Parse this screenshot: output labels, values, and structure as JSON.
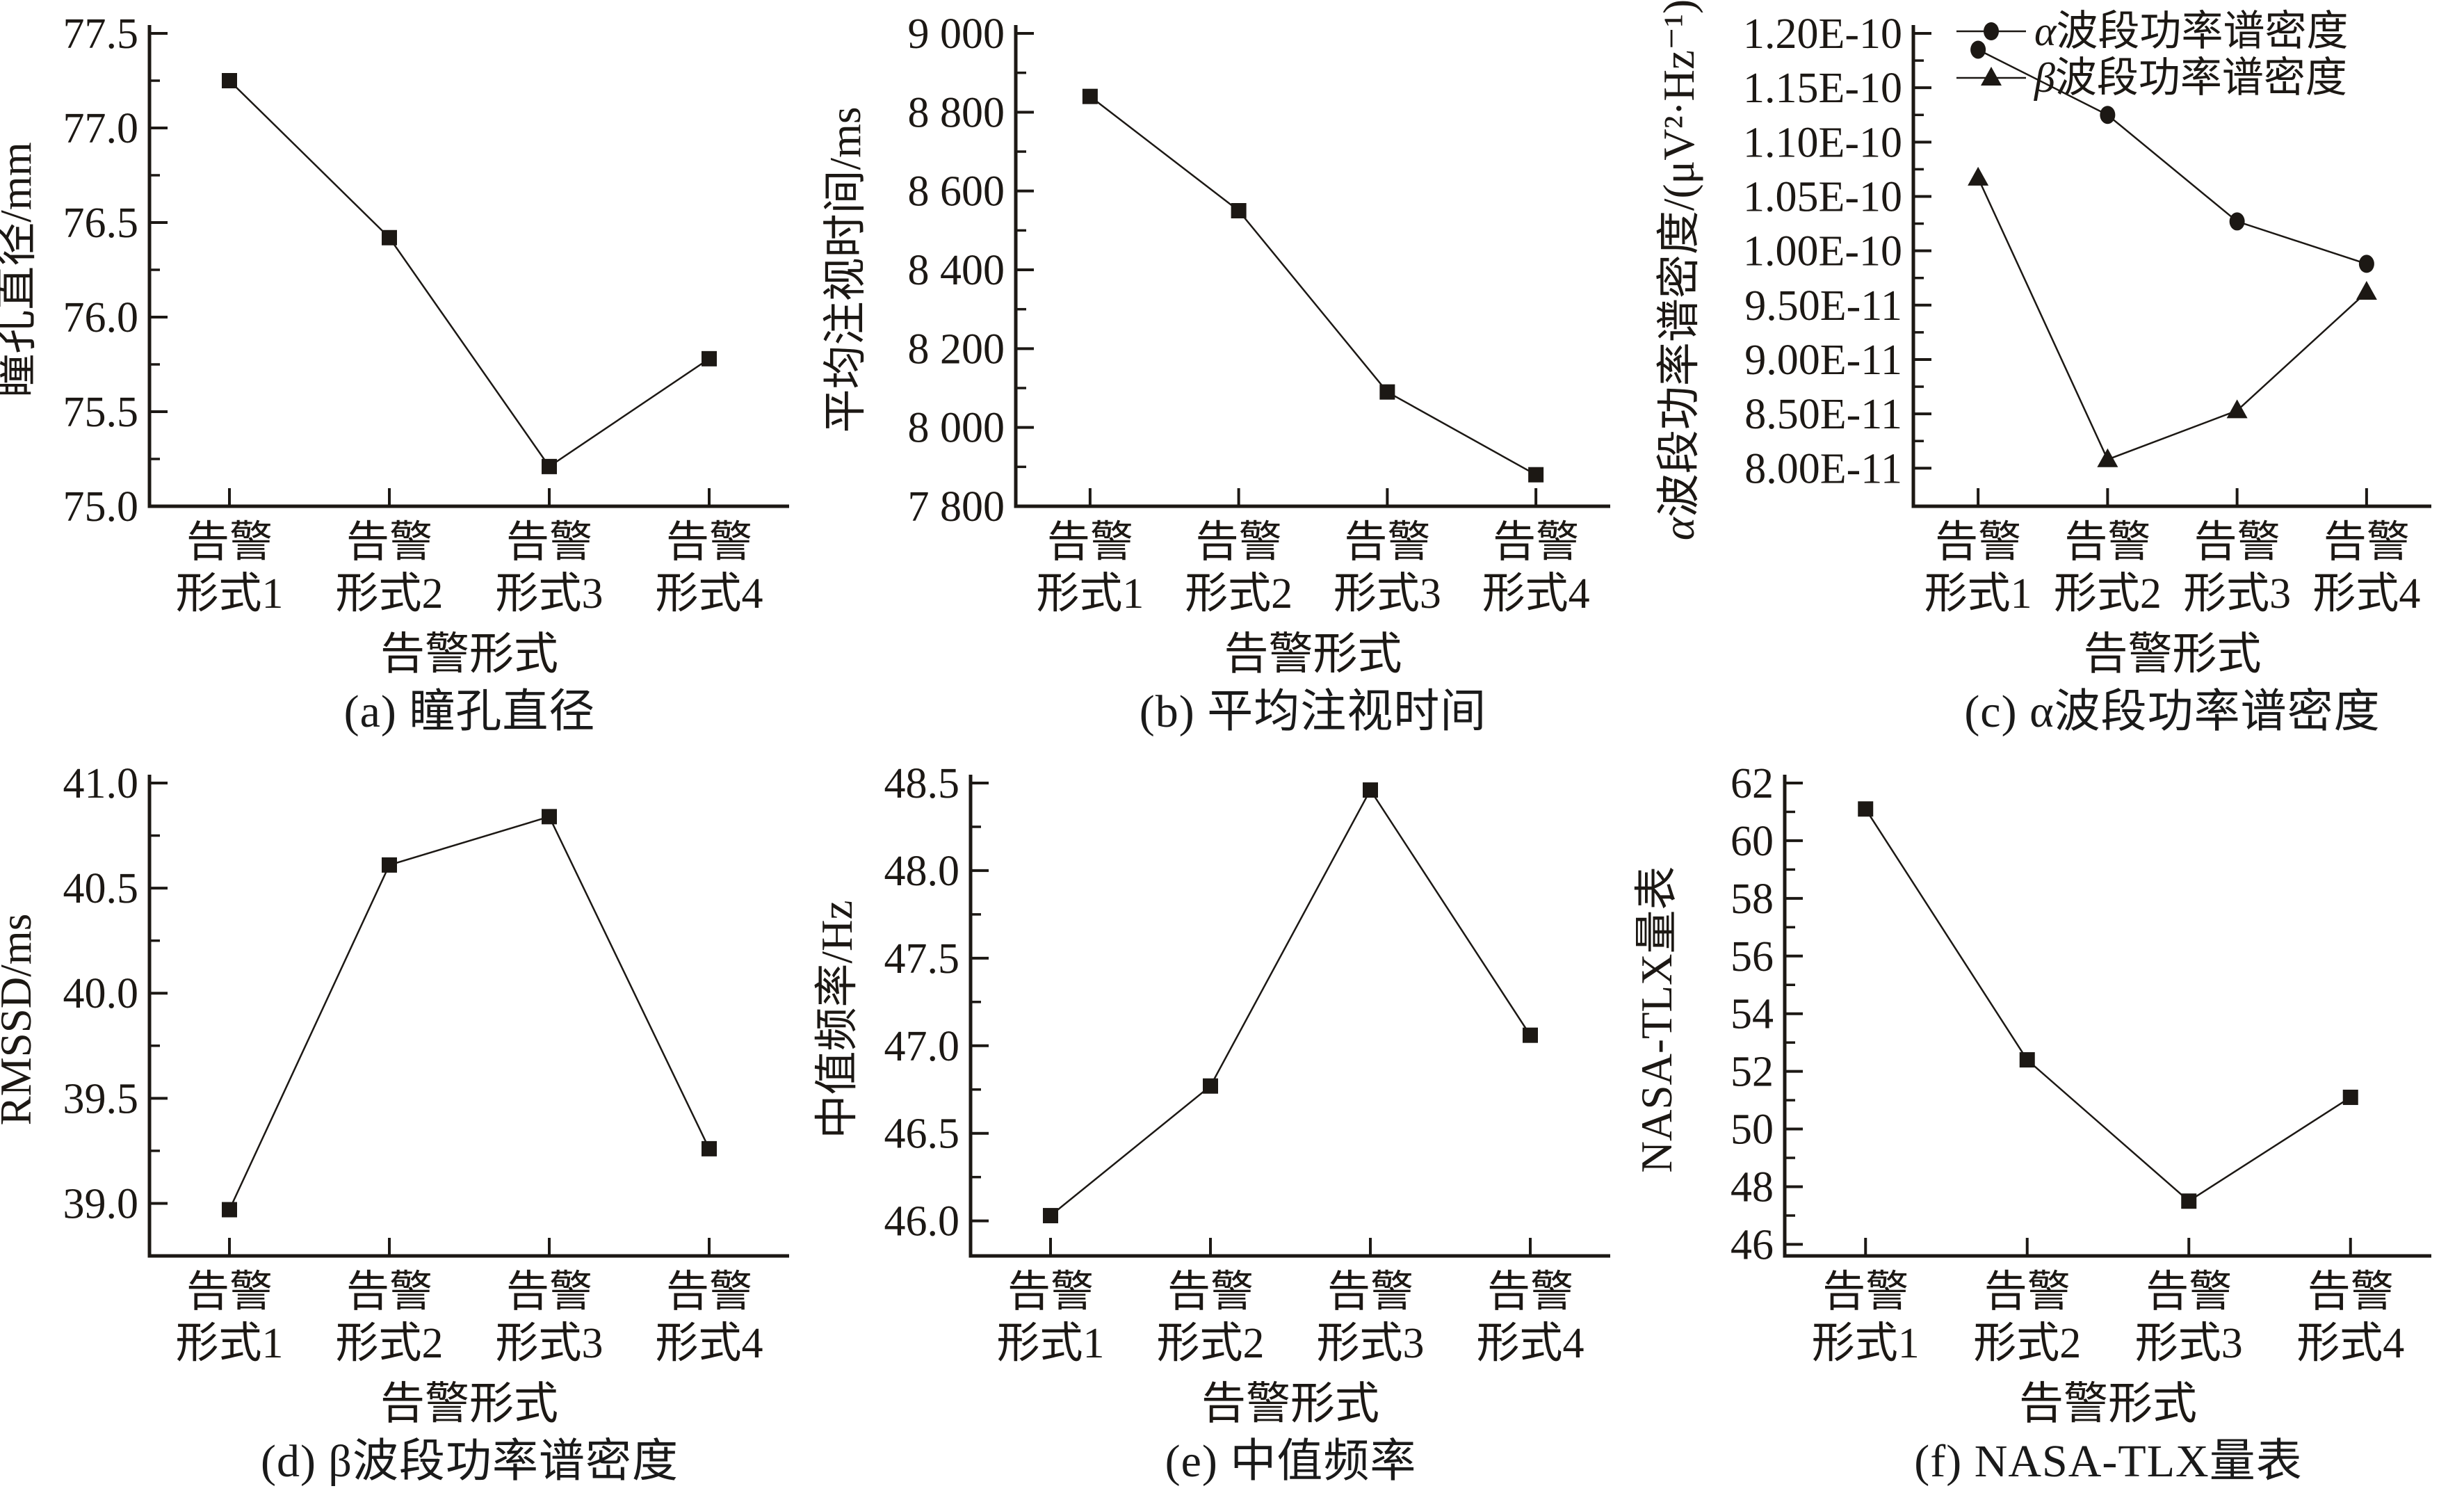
{
  "figure": {
    "background": "#ffffff",
    "ink": "#1c1814",
    "x_axis_title": "告警形式"
  },
  "chart_data": [
    {
      "id": "a",
      "type": "line",
      "caption": "(a) 瞳孔直径",
      "ylabel": "瞳孔直径/mm",
      "xlabel": "告警形式",
      "categories": [
        [
          "告警",
          "形式1"
        ],
        [
          "告警",
          "形式2"
        ],
        [
          "告警",
          "形式3"
        ],
        [
          "告警",
          "形式4"
        ]
      ],
      "ylim": [
        75.0,
        77.5
      ],
      "yticks": [
        {
          "v": 75.0,
          "label": "75.0"
        },
        {
          "v": 75.5,
          "label": "75.5"
        },
        {
          "v": 76.0,
          "label": "76.0"
        },
        {
          "v": 76.5,
          "label": "76.5"
        },
        {
          "v": 77.0,
          "label": "77.0"
        },
        {
          "v": 77.5,
          "label": "77.5"
        }
      ],
      "minor_step": 0.25,
      "grid": false,
      "series": [
        {
          "name": "瞳孔直径",
          "marker": "square",
          "values": [
            77.25,
            76.42,
            75.21,
            75.78
          ]
        }
      ],
      "layout": {
        "left": 215,
        "ylabel_x": 44
      }
    },
    {
      "id": "b",
      "type": "line",
      "caption": "(b) 平均注视时间",
      "ylabel": "平均注视时间/ms",
      "xlabel": "告警形式",
      "categories": [
        [
          "告警",
          "形式1"
        ],
        [
          "告警",
          "形式2"
        ],
        [
          "告警",
          "形式3"
        ],
        [
          "告警",
          "形式4"
        ]
      ],
      "ylim": [
        7800,
        9000
      ],
      "yticks": [
        {
          "v": 7800,
          "label": "7 800"
        },
        {
          "v": 8000,
          "label": "8 000"
        },
        {
          "v": 8200,
          "label": "8 200"
        },
        {
          "v": 8400,
          "label": "8 400"
        },
        {
          "v": 8600,
          "label": "8 600"
        },
        {
          "v": 8800,
          "label": "8 800"
        },
        {
          "v": 9000,
          "label": "9 000"
        }
      ],
      "minor_step": 100,
      "grid": false,
      "series": [
        {
          "name": "平均注视时间",
          "marker": "square",
          "values": [
            8840,
            8550,
            8090,
            7880
          ]
        }
      ],
      "layout": {
        "left": 280,
        "ylabel_x": 56
      }
    },
    {
      "id": "c",
      "type": "line",
      "caption": "(c) α波段功率谱密度",
      "ylabel": "α波段功率谱密度/(μV²·Hz⁻¹)",
      "xlabel": "告警形式",
      "categories": [
        [
          "告警",
          "形式1"
        ],
        [
          "告警",
          "形式2"
        ],
        [
          "告警",
          "形式3"
        ],
        [
          "告警",
          "形式4"
        ]
      ],
      "ylim": [
        7.65e-11,
        1.2e-10
      ],
      "yticks": [
        {
          "v": 8e-11,
          "label": "8.00E-11"
        },
        {
          "v": 8.5e-11,
          "label": "8.50E-11"
        },
        {
          "v": 9e-11,
          "label": "9.00E-11"
        },
        {
          "v": 9.5e-11,
          "label": "9.50E-11"
        },
        {
          "v": 1e-10,
          "label": "1.00E-10"
        },
        {
          "v": 1.05e-10,
          "label": "1.05E-10"
        },
        {
          "v": 1.1e-10,
          "label": "1.10E-10"
        },
        {
          "v": 1.15e-10,
          "label": "1.15E-10"
        },
        {
          "v": 1.2e-10,
          "label": "1.20E-10"
        }
      ],
      "minor_step": 2.5e-12,
      "grid": false,
      "legend": [
        {
          "marker": "circle",
          "label": "α波段功率谱密度"
        },
        {
          "marker": "triangle",
          "label": "β波段功率谱密度"
        }
      ],
      "series": [
        {
          "name": "α波段功率谱密度",
          "marker": "circle",
          "values": [
            1.185e-10,
            1.125e-10,
            1.027e-10,
            9.88e-11
          ]
        },
        {
          "name": "β波段功率谱密度",
          "marker": "triangle",
          "values": [
            1.067e-10,
            8.08e-11,
            8.53e-11,
            9.62e-11
          ]
        }
      ],
      "layout": {
        "left": 390,
        "ylabel_x": 74,
        "legend_x": 452,
        "legend_y": 45
      }
    },
    {
      "id": "d",
      "type": "line",
      "caption": "(d) β波段功率谱密度",
      "ylabel": "RMSSD/ms",
      "xlabel": "告警形式",
      "categories": [
        [
          "告警",
          "形式1"
        ],
        [
          "告警",
          "形式2"
        ],
        [
          "告警",
          "形式3"
        ],
        [
          "告警",
          "形式4"
        ]
      ],
      "ylim": [
        38.75,
        41.0
      ],
      "yticks": [
        {
          "v": 39.0,
          "label": "39.0"
        },
        {
          "v": 39.5,
          "label": "39.5"
        },
        {
          "v": 40.0,
          "label": "40.0"
        },
        {
          "v": 40.5,
          "label": "40.5"
        },
        {
          "v": 41.0,
          "label": "41.0"
        }
      ],
      "minor_step": 0.25,
      "grid": false,
      "series": [
        {
          "name": "RMSSD",
          "marker": "square",
          "values": [
            38.97,
            40.61,
            40.84,
            39.26
          ]
        }
      ],
      "layout": {
        "left": 215,
        "ylabel_x": 44
      }
    },
    {
      "id": "e",
      "type": "line",
      "caption": "(e) 中值频率",
      "ylabel": "中值频率/Hz",
      "xlabel": "告警形式",
      "categories": [
        [
          "告警",
          "形式1"
        ],
        [
          "告警",
          "形式2"
        ],
        [
          "告警",
          "形式3"
        ],
        [
          "告警",
          "形式4"
        ]
      ],
      "ylim": [
        45.8,
        48.5
      ],
      "yticks": [
        {
          "v": 46.0,
          "label": "46.0"
        },
        {
          "v": 46.5,
          "label": "46.5"
        },
        {
          "v": 47.0,
          "label": "47.0"
        },
        {
          "v": 47.5,
          "label": "47.5"
        },
        {
          "v": 48.0,
          "label": "48.0"
        },
        {
          "v": 48.5,
          "label": "48.5"
        }
      ],
      "minor_step": 0.25,
      "grid": false,
      "series": [
        {
          "name": "中值频率",
          "marker": "square",
          "values": [
            46.03,
            46.77,
            48.46,
            47.06
          ]
        }
      ],
      "layout": {
        "left": 215,
        "ylabel_x": 44
      }
    },
    {
      "id": "f",
      "type": "line",
      "caption": "(f) NASA-TLX量表",
      "ylabel": "NASA-TLX量表",
      "xlabel": "告警形式",
      "categories": [
        [
          "告警",
          "形式1"
        ],
        [
          "告警",
          "形式2"
        ],
        [
          "告警",
          "形式3"
        ],
        [
          "告警",
          "形式4"
        ]
      ],
      "ylim": [
        45.6,
        62
      ],
      "yticks": [
        {
          "v": 46,
          "label": "46"
        },
        {
          "v": 48,
          "label": "48"
        },
        {
          "v": 50,
          "label": "50"
        },
        {
          "v": 52,
          "label": "52"
        },
        {
          "v": 54,
          "label": "54"
        },
        {
          "v": 56,
          "label": "56"
        },
        {
          "v": 58,
          "label": "58"
        },
        {
          "v": 60,
          "label": "60"
        },
        {
          "v": 62,
          "label": "62"
        }
      ],
      "minor_step": 1,
      "grid": false,
      "series": [
        {
          "name": "NASA-TLX",
          "marker": "square",
          "values": [
            61.1,
            52.4,
            47.5,
            51.1
          ]
        }
      ],
      "layout": {
        "left": 205,
        "ylabel_x": 42
      }
    }
  ]
}
